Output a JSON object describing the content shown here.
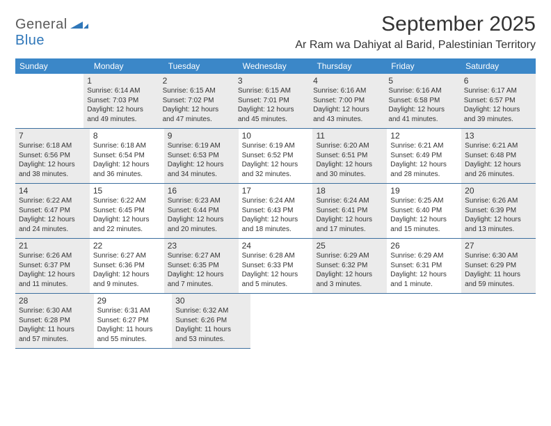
{
  "logo": {
    "part1": "General",
    "part2": "Blue"
  },
  "title": "September 2025",
  "location": "Ar Ram wa Dahiyat al Barid, Palestinian Territory",
  "colors": {
    "header_bg": "#3b87c8",
    "header_text": "#ffffff",
    "shaded_bg": "#ebebeb",
    "border": "#3b6e9e",
    "text": "#333333",
    "logo_gray": "#5a5a5a",
    "logo_blue": "#2f77b9"
  },
  "day_headers": [
    "Sunday",
    "Monday",
    "Tuesday",
    "Wednesday",
    "Thursday",
    "Friday",
    "Saturday"
  ],
  "weeks": [
    [
      {
        "blank": true,
        "shaded": false
      },
      {
        "num": "1",
        "shaded": true,
        "sunrise": "Sunrise: 6:14 AM",
        "sunset": "Sunset: 7:03 PM",
        "daylight1": "Daylight: 12 hours",
        "daylight2": "and 49 minutes."
      },
      {
        "num": "2",
        "shaded": true,
        "sunrise": "Sunrise: 6:15 AM",
        "sunset": "Sunset: 7:02 PM",
        "daylight1": "Daylight: 12 hours",
        "daylight2": "and 47 minutes."
      },
      {
        "num": "3",
        "shaded": true,
        "sunrise": "Sunrise: 6:15 AM",
        "sunset": "Sunset: 7:01 PM",
        "daylight1": "Daylight: 12 hours",
        "daylight2": "and 45 minutes."
      },
      {
        "num": "4",
        "shaded": true,
        "sunrise": "Sunrise: 6:16 AM",
        "sunset": "Sunset: 7:00 PM",
        "daylight1": "Daylight: 12 hours",
        "daylight2": "and 43 minutes."
      },
      {
        "num": "5",
        "shaded": true,
        "sunrise": "Sunrise: 6:16 AM",
        "sunset": "Sunset: 6:58 PM",
        "daylight1": "Daylight: 12 hours",
        "daylight2": "and 41 minutes."
      },
      {
        "num": "6",
        "shaded": true,
        "sunrise": "Sunrise: 6:17 AM",
        "sunset": "Sunset: 6:57 PM",
        "daylight1": "Daylight: 12 hours",
        "daylight2": "and 39 minutes."
      }
    ],
    [
      {
        "num": "7",
        "shaded": true,
        "sunrise": "Sunrise: 6:18 AM",
        "sunset": "Sunset: 6:56 PM",
        "daylight1": "Daylight: 12 hours",
        "daylight2": "and 38 minutes."
      },
      {
        "num": "8",
        "shaded": false,
        "sunrise": "Sunrise: 6:18 AM",
        "sunset": "Sunset: 6:54 PM",
        "daylight1": "Daylight: 12 hours",
        "daylight2": "and 36 minutes."
      },
      {
        "num": "9",
        "shaded": true,
        "sunrise": "Sunrise: 6:19 AM",
        "sunset": "Sunset: 6:53 PM",
        "daylight1": "Daylight: 12 hours",
        "daylight2": "and 34 minutes."
      },
      {
        "num": "10",
        "shaded": false,
        "sunrise": "Sunrise: 6:19 AM",
        "sunset": "Sunset: 6:52 PM",
        "daylight1": "Daylight: 12 hours",
        "daylight2": "and 32 minutes."
      },
      {
        "num": "11",
        "shaded": true,
        "sunrise": "Sunrise: 6:20 AM",
        "sunset": "Sunset: 6:51 PM",
        "daylight1": "Daylight: 12 hours",
        "daylight2": "and 30 minutes."
      },
      {
        "num": "12",
        "shaded": false,
        "sunrise": "Sunrise: 6:21 AM",
        "sunset": "Sunset: 6:49 PM",
        "daylight1": "Daylight: 12 hours",
        "daylight2": "and 28 minutes."
      },
      {
        "num": "13",
        "shaded": true,
        "sunrise": "Sunrise: 6:21 AM",
        "sunset": "Sunset: 6:48 PM",
        "daylight1": "Daylight: 12 hours",
        "daylight2": "and 26 minutes."
      }
    ],
    [
      {
        "num": "14",
        "shaded": true,
        "sunrise": "Sunrise: 6:22 AM",
        "sunset": "Sunset: 6:47 PM",
        "daylight1": "Daylight: 12 hours",
        "daylight2": "and 24 minutes."
      },
      {
        "num": "15",
        "shaded": false,
        "sunrise": "Sunrise: 6:22 AM",
        "sunset": "Sunset: 6:45 PM",
        "daylight1": "Daylight: 12 hours",
        "daylight2": "and 22 minutes."
      },
      {
        "num": "16",
        "shaded": true,
        "sunrise": "Sunrise: 6:23 AM",
        "sunset": "Sunset: 6:44 PM",
        "daylight1": "Daylight: 12 hours",
        "daylight2": "and 20 minutes."
      },
      {
        "num": "17",
        "shaded": false,
        "sunrise": "Sunrise: 6:24 AM",
        "sunset": "Sunset: 6:43 PM",
        "daylight1": "Daylight: 12 hours",
        "daylight2": "and 18 minutes."
      },
      {
        "num": "18",
        "shaded": true,
        "sunrise": "Sunrise: 6:24 AM",
        "sunset": "Sunset: 6:41 PM",
        "daylight1": "Daylight: 12 hours",
        "daylight2": "and 17 minutes."
      },
      {
        "num": "19",
        "shaded": false,
        "sunrise": "Sunrise: 6:25 AM",
        "sunset": "Sunset: 6:40 PM",
        "daylight1": "Daylight: 12 hours",
        "daylight2": "and 15 minutes."
      },
      {
        "num": "20",
        "shaded": true,
        "sunrise": "Sunrise: 6:26 AM",
        "sunset": "Sunset: 6:39 PM",
        "daylight1": "Daylight: 12 hours",
        "daylight2": "and 13 minutes."
      }
    ],
    [
      {
        "num": "21",
        "shaded": true,
        "sunrise": "Sunrise: 6:26 AM",
        "sunset": "Sunset: 6:37 PM",
        "daylight1": "Daylight: 12 hours",
        "daylight2": "and 11 minutes."
      },
      {
        "num": "22",
        "shaded": false,
        "sunrise": "Sunrise: 6:27 AM",
        "sunset": "Sunset: 6:36 PM",
        "daylight1": "Daylight: 12 hours",
        "daylight2": "and 9 minutes."
      },
      {
        "num": "23",
        "shaded": true,
        "sunrise": "Sunrise: 6:27 AM",
        "sunset": "Sunset: 6:35 PM",
        "daylight1": "Daylight: 12 hours",
        "daylight2": "and 7 minutes."
      },
      {
        "num": "24",
        "shaded": false,
        "sunrise": "Sunrise: 6:28 AM",
        "sunset": "Sunset: 6:33 PM",
        "daylight1": "Daylight: 12 hours",
        "daylight2": "and 5 minutes."
      },
      {
        "num": "25",
        "shaded": true,
        "sunrise": "Sunrise: 6:29 AM",
        "sunset": "Sunset: 6:32 PM",
        "daylight1": "Daylight: 12 hours",
        "daylight2": "and 3 minutes."
      },
      {
        "num": "26",
        "shaded": false,
        "sunrise": "Sunrise: 6:29 AM",
        "sunset": "Sunset: 6:31 PM",
        "daylight1": "Daylight: 12 hours",
        "daylight2": "and 1 minute."
      },
      {
        "num": "27",
        "shaded": true,
        "sunrise": "Sunrise: 6:30 AM",
        "sunset": "Sunset: 6:29 PM",
        "daylight1": "Daylight: 11 hours",
        "daylight2": "and 59 minutes."
      }
    ],
    [
      {
        "num": "28",
        "shaded": true,
        "sunrise": "Sunrise: 6:30 AM",
        "sunset": "Sunset: 6:28 PM",
        "daylight1": "Daylight: 11 hours",
        "daylight2": "and 57 minutes."
      },
      {
        "num": "29",
        "shaded": false,
        "sunrise": "Sunrise: 6:31 AM",
        "sunset": "Sunset: 6:27 PM",
        "daylight1": "Daylight: 11 hours",
        "daylight2": "and 55 minutes."
      },
      {
        "num": "30",
        "shaded": true,
        "sunrise": "Sunrise: 6:32 AM",
        "sunset": "Sunset: 6:26 PM",
        "daylight1": "Daylight: 11 hours",
        "daylight2": "and 53 minutes."
      },
      {
        "blank": true,
        "shaded": false
      },
      {
        "blank": true,
        "shaded": false
      },
      {
        "blank": true,
        "shaded": false
      },
      {
        "blank": true,
        "shaded": false
      }
    ]
  ]
}
